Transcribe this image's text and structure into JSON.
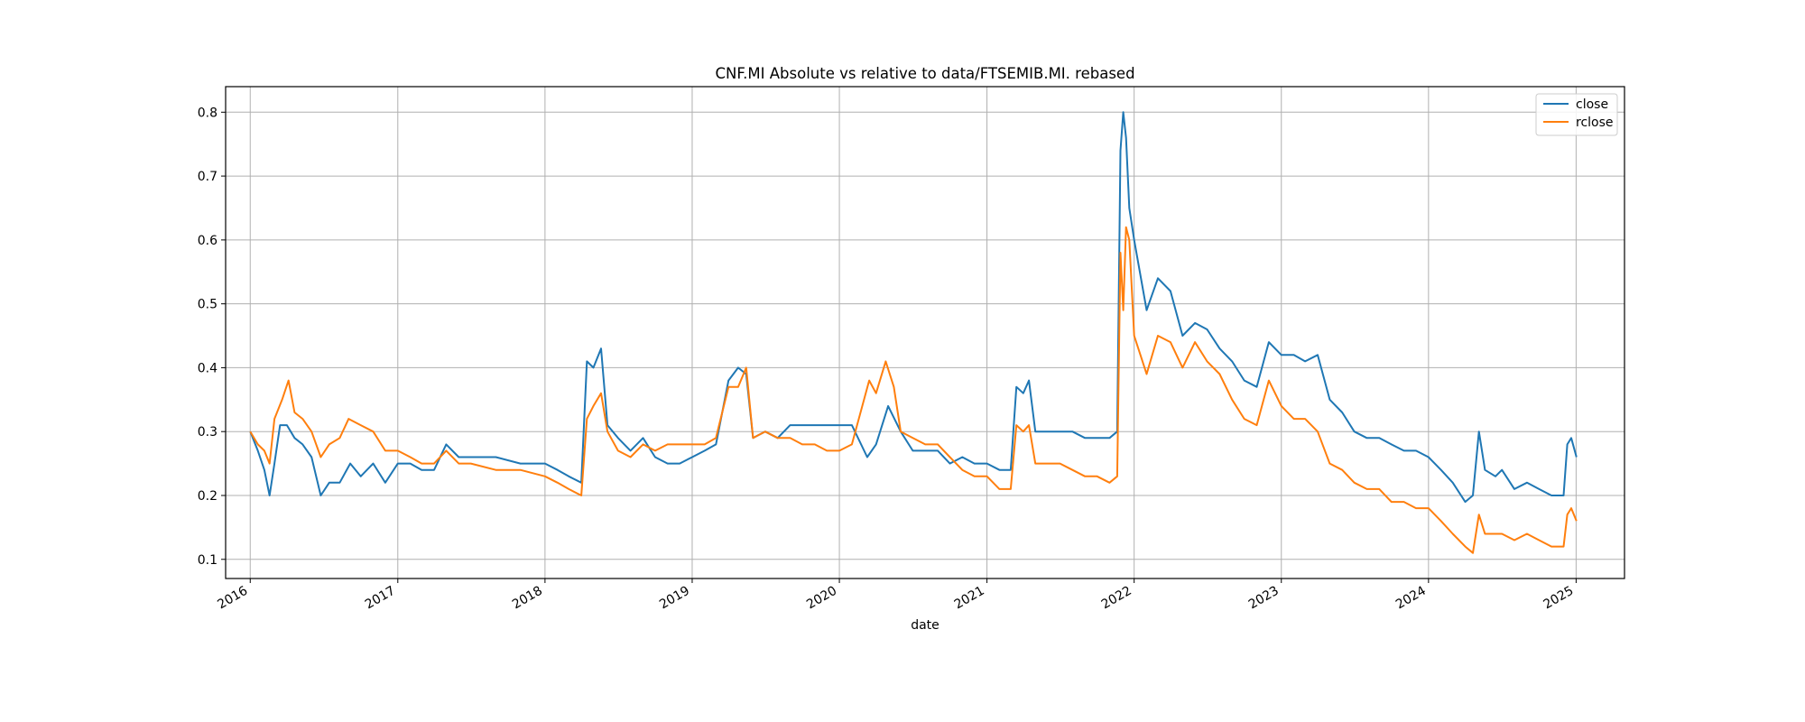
{
  "chart_data": {
    "type": "line",
    "title": "CNF.MI Absolute vs relative to data/FTSEMIB.MI. rebased",
    "xlabel": "date",
    "ylabel": "",
    "x_range": [
      "2015-11-01",
      "2025-05-01"
    ],
    "ylim": [
      0.07,
      0.84
    ],
    "x_ticks": [
      "2016",
      "2017",
      "2018",
      "2019",
      "2020",
      "2021",
      "2022",
      "2023",
      "2024",
      "2025"
    ],
    "y_ticks": [
      "0.1",
      "0.2",
      "0.3",
      "0.4",
      "0.5",
      "0.6",
      "0.7",
      "0.8"
    ],
    "grid": true,
    "legend": "top-right",
    "colors": {
      "close": "#1f77b4",
      "rclose": "#ff7f0e"
    },
    "series": [
      {
        "name": "close",
        "points": [
          [
            "2016-01-01",
            0.3
          ],
          [
            "2016-01-20",
            0.27
          ],
          [
            "2016-02-05",
            0.24
          ],
          [
            "2016-02-18",
            0.2
          ],
          [
            "2016-03-01",
            0.25
          ],
          [
            "2016-03-15",
            0.31
          ],
          [
            "2016-04-01",
            0.31
          ],
          [
            "2016-04-20",
            0.29
          ],
          [
            "2016-05-10",
            0.28
          ],
          [
            "2016-06-01",
            0.26
          ],
          [
            "2016-06-24",
            0.2
          ],
          [
            "2016-07-15",
            0.22
          ],
          [
            "2016-08-10",
            0.22
          ],
          [
            "2016-09-05",
            0.25
          ],
          [
            "2016-10-01",
            0.23
          ],
          [
            "2016-11-01",
            0.25
          ],
          [
            "2016-12-01",
            0.22
          ],
          [
            "2017-01-01",
            0.25
          ],
          [
            "2017-02-01",
            0.25
          ],
          [
            "2017-03-01",
            0.24
          ],
          [
            "2017-04-01",
            0.24
          ],
          [
            "2017-05-01",
            0.28
          ],
          [
            "2017-06-01",
            0.26
          ],
          [
            "2017-07-01",
            0.26
          ],
          [
            "2017-09-01",
            0.26
          ],
          [
            "2017-11-01",
            0.25
          ],
          [
            "2018-01-01",
            0.25
          ],
          [
            "2018-02-01",
            0.24
          ],
          [
            "2018-03-01",
            0.23
          ],
          [
            "2018-04-01",
            0.22
          ],
          [
            "2018-04-15",
            0.41
          ],
          [
            "2018-05-01",
            0.4
          ],
          [
            "2018-05-20",
            0.43
          ],
          [
            "2018-06-05",
            0.31
          ],
          [
            "2018-07-01",
            0.29
          ],
          [
            "2018-08-01",
            0.27
          ],
          [
            "2018-09-01",
            0.29
          ],
          [
            "2018-10-01",
            0.26
          ],
          [
            "2018-11-01",
            0.25
          ],
          [
            "2018-12-01",
            0.25
          ],
          [
            "2019-01-01",
            0.26
          ],
          [
            "2019-02-01",
            0.27
          ],
          [
            "2019-03-01",
            0.28
          ],
          [
            "2019-04-01",
            0.38
          ],
          [
            "2019-04-25",
            0.4
          ],
          [
            "2019-05-15",
            0.39
          ],
          [
            "2019-06-01",
            0.29
          ],
          [
            "2019-07-01",
            0.3
          ],
          [
            "2019-08-01",
            0.29
          ],
          [
            "2019-09-01",
            0.31
          ],
          [
            "2019-10-01",
            0.31
          ],
          [
            "2019-11-01",
            0.31
          ],
          [
            "2019-12-01",
            0.31
          ],
          [
            "2020-01-01",
            0.31
          ],
          [
            "2020-02-01",
            0.31
          ],
          [
            "2020-03-10",
            0.26
          ],
          [
            "2020-04-01",
            0.28
          ],
          [
            "2020-05-01",
            0.34
          ],
          [
            "2020-06-01",
            0.3
          ],
          [
            "2020-07-01",
            0.27
          ],
          [
            "2020-08-01",
            0.27
          ],
          [
            "2020-09-01",
            0.27
          ],
          [
            "2020-10-01",
            0.25
          ],
          [
            "2020-11-01",
            0.26
          ],
          [
            "2020-12-01",
            0.25
          ],
          [
            "2021-01-01",
            0.25
          ],
          [
            "2021-02-01",
            0.24
          ],
          [
            "2021-03-01",
            0.24
          ],
          [
            "2021-03-15",
            0.37
          ],
          [
            "2021-04-01",
            0.36
          ],
          [
            "2021-04-15",
            0.38
          ],
          [
            "2021-05-01",
            0.3
          ],
          [
            "2021-06-01",
            0.3
          ],
          [
            "2021-07-01",
            0.3
          ],
          [
            "2021-08-01",
            0.3
          ],
          [
            "2021-09-01",
            0.29
          ],
          [
            "2021-10-01",
            0.29
          ],
          [
            "2021-11-01",
            0.29
          ],
          [
            "2021-11-20",
            0.3
          ],
          [
            "2021-11-28",
            0.74
          ],
          [
            "2021-12-05",
            0.8
          ],
          [
            "2021-12-12",
            0.76
          ],
          [
            "2021-12-20",
            0.65
          ],
          [
            "2022-01-01",
            0.6
          ],
          [
            "2022-02-01",
            0.49
          ],
          [
            "2022-03-01",
            0.54
          ],
          [
            "2022-04-01",
            0.52
          ],
          [
            "2022-05-01",
            0.45
          ],
          [
            "2022-06-01",
            0.47
          ],
          [
            "2022-07-01",
            0.46
          ],
          [
            "2022-08-01",
            0.43
          ],
          [
            "2022-09-01",
            0.41
          ],
          [
            "2022-10-01",
            0.38
          ],
          [
            "2022-11-01",
            0.37
          ],
          [
            "2022-12-01",
            0.44
          ],
          [
            "2023-01-01",
            0.42
          ],
          [
            "2023-02-01",
            0.42
          ],
          [
            "2023-03-01",
            0.41
          ],
          [
            "2023-04-01",
            0.42
          ],
          [
            "2023-05-01",
            0.35
          ],
          [
            "2023-06-01",
            0.33
          ],
          [
            "2023-07-01",
            0.3
          ],
          [
            "2023-08-01",
            0.29
          ],
          [
            "2023-09-01",
            0.29
          ],
          [
            "2023-10-01",
            0.28
          ],
          [
            "2023-11-01",
            0.27
          ],
          [
            "2023-12-01",
            0.27
          ],
          [
            "2024-01-01",
            0.26
          ],
          [
            "2024-02-01",
            0.24
          ],
          [
            "2024-03-01",
            0.22
          ],
          [
            "2024-04-01",
            0.19
          ],
          [
            "2024-04-20",
            0.2
          ],
          [
            "2024-05-05",
            0.3
          ],
          [
            "2024-05-20",
            0.24
          ],
          [
            "2024-06-15",
            0.23
          ],
          [
            "2024-07-01",
            0.24
          ],
          [
            "2024-08-01",
            0.21
          ],
          [
            "2024-09-01",
            0.22
          ],
          [
            "2024-10-01",
            0.21
          ],
          [
            "2024-11-01",
            0.2
          ],
          [
            "2024-12-01",
            0.2
          ],
          [
            "2024-12-10",
            0.28
          ],
          [
            "2024-12-20",
            0.29
          ],
          [
            "2025-01-02",
            0.26
          ]
        ]
      },
      {
        "name": "rclose",
        "points": [
          [
            "2016-01-01",
            0.3
          ],
          [
            "2016-01-20",
            0.28
          ],
          [
            "2016-02-05",
            0.27
          ],
          [
            "2016-02-18",
            0.25
          ],
          [
            "2016-03-01",
            0.32
          ],
          [
            "2016-03-20",
            0.35
          ],
          [
            "2016-04-05",
            0.38
          ],
          [
            "2016-04-20",
            0.33
          ],
          [
            "2016-05-10",
            0.32
          ],
          [
            "2016-06-01",
            0.3
          ],
          [
            "2016-06-24",
            0.26
          ],
          [
            "2016-07-15",
            0.28
          ],
          [
            "2016-08-10",
            0.29
          ],
          [
            "2016-09-01",
            0.32
          ],
          [
            "2016-10-01",
            0.31
          ],
          [
            "2016-11-01",
            0.3
          ],
          [
            "2016-12-01",
            0.27
          ],
          [
            "2017-01-01",
            0.27
          ],
          [
            "2017-02-01",
            0.26
          ],
          [
            "2017-03-01",
            0.25
          ],
          [
            "2017-04-01",
            0.25
          ],
          [
            "2017-05-01",
            0.27
          ],
          [
            "2017-06-01",
            0.25
          ],
          [
            "2017-07-01",
            0.25
          ],
          [
            "2017-09-01",
            0.24
          ],
          [
            "2017-11-01",
            0.24
          ],
          [
            "2018-01-01",
            0.23
          ],
          [
            "2018-02-01",
            0.22
          ],
          [
            "2018-03-01",
            0.21
          ],
          [
            "2018-04-01",
            0.2
          ],
          [
            "2018-04-15",
            0.32
          ],
          [
            "2018-05-01",
            0.34
          ],
          [
            "2018-05-20",
            0.36
          ],
          [
            "2018-06-05",
            0.3
          ],
          [
            "2018-07-01",
            0.27
          ],
          [
            "2018-08-01",
            0.26
          ],
          [
            "2018-09-01",
            0.28
          ],
          [
            "2018-10-01",
            0.27
          ],
          [
            "2018-11-01",
            0.28
          ],
          [
            "2018-12-01",
            0.28
          ],
          [
            "2019-01-01",
            0.28
          ],
          [
            "2019-02-01",
            0.28
          ],
          [
            "2019-03-01",
            0.29
          ],
          [
            "2019-04-01",
            0.37
          ],
          [
            "2019-04-25",
            0.37
          ],
          [
            "2019-05-15",
            0.4
          ],
          [
            "2019-06-01",
            0.29
          ],
          [
            "2019-07-01",
            0.3
          ],
          [
            "2019-08-01",
            0.29
          ],
          [
            "2019-09-01",
            0.29
          ],
          [
            "2019-10-01",
            0.28
          ],
          [
            "2019-11-01",
            0.28
          ],
          [
            "2019-12-01",
            0.27
          ],
          [
            "2020-01-01",
            0.27
          ],
          [
            "2020-02-01",
            0.28
          ],
          [
            "2020-03-15",
            0.38
          ],
          [
            "2020-04-01",
            0.36
          ],
          [
            "2020-04-25",
            0.41
          ],
          [
            "2020-05-15",
            0.37
          ],
          [
            "2020-06-01",
            0.3
          ],
          [
            "2020-07-01",
            0.29
          ],
          [
            "2020-08-01",
            0.28
          ],
          [
            "2020-09-01",
            0.28
          ],
          [
            "2020-10-01",
            0.26
          ],
          [
            "2020-11-01",
            0.24
          ],
          [
            "2020-12-01",
            0.23
          ],
          [
            "2021-01-01",
            0.23
          ],
          [
            "2021-02-01",
            0.21
          ],
          [
            "2021-03-01",
            0.21
          ],
          [
            "2021-03-15",
            0.31
          ],
          [
            "2021-04-01",
            0.3
          ],
          [
            "2021-04-15",
            0.31
          ],
          [
            "2021-05-01",
            0.25
          ],
          [
            "2021-06-01",
            0.25
          ],
          [
            "2021-07-01",
            0.25
          ],
          [
            "2021-08-01",
            0.24
          ],
          [
            "2021-09-01",
            0.23
          ],
          [
            "2021-10-01",
            0.23
          ],
          [
            "2021-11-01",
            0.22
          ],
          [
            "2021-11-20",
            0.23
          ],
          [
            "2021-11-28",
            0.58
          ],
          [
            "2021-12-05",
            0.49
          ],
          [
            "2021-12-12",
            0.62
          ],
          [
            "2021-12-20",
            0.6
          ],
          [
            "2022-01-01",
            0.45
          ],
          [
            "2022-02-01",
            0.39
          ],
          [
            "2022-03-01",
            0.45
          ],
          [
            "2022-04-01",
            0.44
          ],
          [
            "2022-05-01",
            0.4
          ],
          [
            "2022-06-01",
            0.44
          ],
          [
            "2022-07-01",
            0.41
          ],
          [
            "2022-08-01",
            0.39
          ],
          [
            "2022-09-01",
            0.35
          ],
          [
            "2022-10-01",
            0.32
          ],
          [
            "2022-11-01",
            0.31
          ],
          [
            "2022-12-01",
            0.38
          ],
          [
            "2023-01-01",
            0.34
          ],
          [
            "2023-02-01",
            0.32
          ],
          [
            "2023-03-01",
            0.32
          ],
          [
            "2023-04-01",
            0.3
          ],
          [
            "2023-05-01",
            0.25
          ],
          [
            "2023-06-01",
            0.24
          ],
          [
            "2023-07-01",
            0.22
          ],
          [
            "2023-08-01",
            0.21
          ],
          [
            "2023-09-01",
            0.21
          ],
          [
            "2023-10-01",
            0.19
          ],
          [
            "2023-11-01",
            0.19
          ],
          [
            "2023-12-01",
            0.18
          ],
          [
            "2024-01-01",
            0.18
          ],
          [
            "2024-02-01",
            0.16
          ],
          [
            "2024-03-01",
            0.14
          ],
          [
            "2024-04-01",
            0.12
          ],
          [
            "2024-04-20",
            0.11
          ],
          [
            "2024-05-05",
            0.17
          ],
          [
            "2024-05-20",
            0.14
          ],
          [
            "2024-06-15",
            0.14
          ],
          [
            "2024-07-01",
            0.14
          ],
          [
            "2024-08-01",
            0.13
          ],
          [
            "2024-09-01",
            0.14
          ],
          [
            "2024-10-01",
            0.13
          ],
          [
            "2024-11-01",
            0.12
          ],
          [
            "2024-12-01",
            0.12
          ],
          [
            "2024-12-10",
            0.17
          ],
          [
            "2024-12-20",
            0.18
          ],
          [
            "2025-01-02",
            0.16
          ]
        ]
      }
    ]
  }
}
